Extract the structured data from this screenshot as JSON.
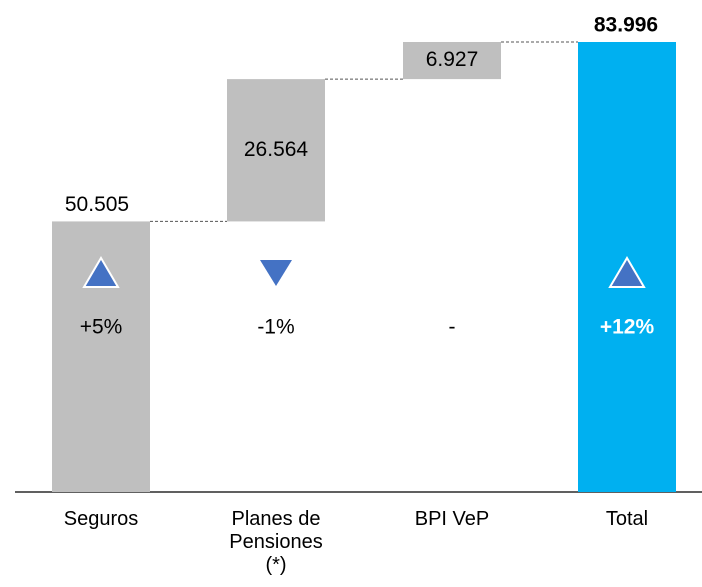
{
  "chart_data": {
    "type": "waterfall",
    "categories": [
      "Seguros",
      "Planes de Pensiones (*)",
      "BPI VeP",
      "Total"
    ],
    "values": [
      50.505,
      26.564,
      6.927,
      83.996
    ],
    "value_labels": [
      "50.505",
      "26.564",
      "6.927",
      "83.996"
    ],
    "changes": [
      "+5%",
      "-1%",
      "-",
      "+12%"
    ],
    "change_directions": [
      "up",
      "down",
      null,
      "up"
    ],
    "color": "#bfbfbf",
    "total_color": "#00b0f0",
    "arrow_color": "#4472c4"
  }
}
